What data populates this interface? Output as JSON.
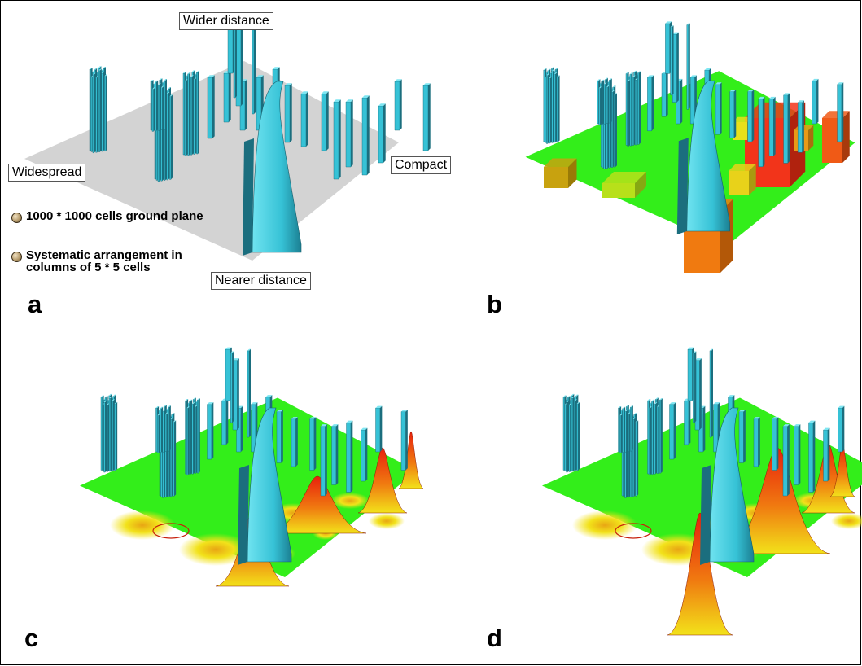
{
  "labels": {
    "wider": "Wider distance",
    "nearer": "Nearer distance",
    "widespread": "Widespread",
    "compact": "Compact"
  },
  "legend": [
    {
      "text": "1000 * 1000 cells ground plane",
      "icon": "bullet-icon"
    },
    {
      "text": "Systematic arrangement in columns of 5 * 5 cells",
      "icon": "bullet-icon"
    }
  ],
  "panels": [
    {
      "letter": "a",
      "ground": "#d3d3d3"
    },
    {
      "letter": "b",
      "ground": "#33ee1a"
    },
    {
      "letter": "c",
      "ground": "#33ee1a"
    },
    {
      "letter": "d",
      "ground": "#33ee1a"
    }
  ],
  "colors": {
    "bar_face": "#36c2d6",
    "bar_side": "#1b6e7e",
    "bar_top": "#7fe6f2",
    "ground_gray": "#d3d3d3",
    "ground_green": "#33ee1a",
    "peak_red": "#e8200c",
    "peak_orange": "#f07a10",
    "peak_yellow": "#f2e21a"
  }
}
